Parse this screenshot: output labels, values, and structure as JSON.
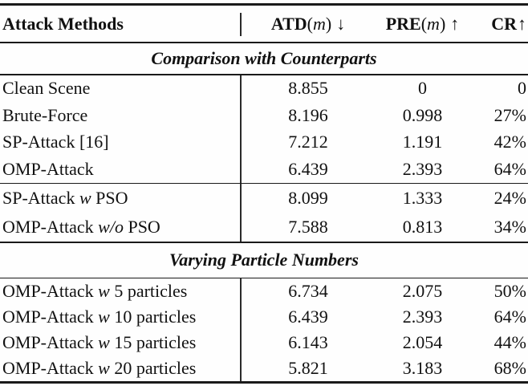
{
  "table": {
    "header": {
      "method": "Attack Methods",
      "atd": {
        "name": "ATD",
        "open": "(",
        "var": "m",
        "close": ")",
        "arrow": "↓"
      },
      "pre": {
        "name": "PRE",
        "open": "(",
        "var": "m",
        "close": ")",
        "arrow": "↑"
      },
      "cr": {
        "name": "CR",
        "arrow": "↑"
      }
    },
    "sections": {
      "comparison": "Comparison with Counterparts",
      "varying": "Varying Particle Numbers"
    },
    "group1": {
      "rows": [
        {
          "l1": "Clean Scene",
          "lv": "",
          "l2": "",
          "atd": "8.855",
          "pre": "0",
          "cr": "0"
        },
        {
          "l1": "Brute-Force",
          "lv": "",
          "l2": "",
          "atd": "8.196",
          "pre": "0.998",
          "cr": "27%"
        },
        {
          "l1": "SP-Attack [16]",
          "lv": "",
          "l2": "",
          "atd": "7.212",
          "pre": "1.191",
          "cr": "42%"
        },
        {
          "l1": "OMP-Attack",
          "lv": "",
          "l2": "",
          "atd": "6.439",
          "pre": "2.393",
          "cr": "64%"
        }
      ]
    },
    "group2": {
      "rows": [
        {
          "l1": "SP-Attack ",
          "lv": "w",
          "l2": " PSO",
          "atd": "8.099",
          "pre": "1.333",
          "cr": "24%"
        },
        {
          "l1": "OMP-Attack ",
          "lv": "w/o",
          "l2": " PSO",
          "atd": "7.588",
          "pre": "0.813",
          "cr": "34%"
        }
      ]
    },
    "group3": {
      "rows": [
        {
          "l1": "OMP-Attack ",
          "lv": "w",
          "l2": " 5 particles",
          "atd": "6.734",
          "pre": "2.075",
          "cr": "50%"
        },
        {
          "l1": "OMP-Attack ",
          "lv": "w",
          "l2": " 10 particles",
          "atd": "6.439",
          "pre": "2.393",
          "cr": "64%"
        },
        {
          "l1": "OMP-Attack ",
          "lv": "w",
          "l2": " 15 particles",
          "atd": "6.143",
          "pre": "2.054",
          "cr": "44%"
        },
        {
          "l1": "OMP-Attack ",
          "lv": "w",
          "l2": " 20 particles",
          "atd": "5.821",
          "pre": "3.183",
          "cr": "68%"
        }
      ]
    }
  }
}
